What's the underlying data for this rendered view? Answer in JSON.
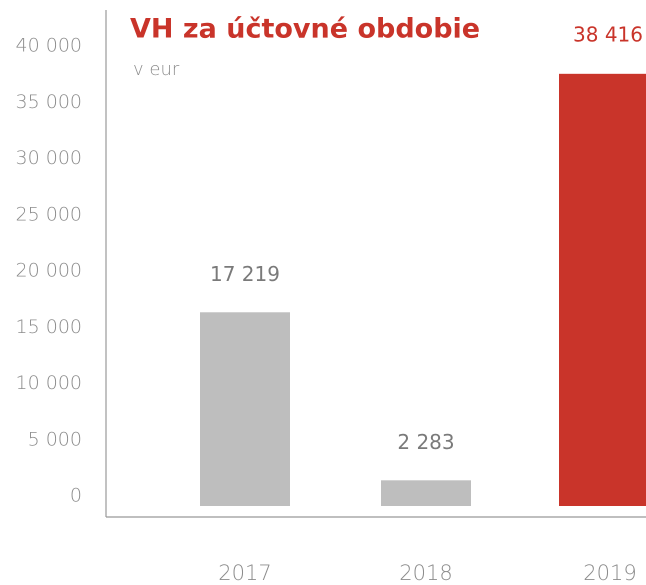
{
  "chart_data": {
    "type": "bar",
    "title": "VH za účtovné obdobie",
    "subtitle": "v eur",
    "categories": [
      "2017",
      "2018",
      "2019"
    ],
    "values": [
      17219,
      2283,
      38416
    ],
    "value_labels": [
      "17 219",
      "2 283",
      "38 416"
    ],
    "colors": [
      "#bebebe",
      "#bebebe",
      "#c9342a"
    ],
    "label_colors": [
      "#7a7a7a",
      "#7a7a7a",
      "#c9342a"
    ],
    "title_color": "#c9342a",
    "ylim": [
      0,
      40000
    ],
    "yticks": [
      {
        "value": 0,
        "label": "0"
      },
      {
        "value": 5000,
        "label": "5 000"
      },
      {
        "value": 10000,
        "label": "10 000"
      },
      {
        "value": 15000,
        "label": "15 000"
      },
      {
        "value": 20000,
        "label": "20 000"
      },
      {
        "value": 25000,
        "label": "25 000"
      },
      {
        "value": 30000,
        "label": "30 000"
      },
      {
        "value": 35000,
        "label": "35 000"
      },
      {
        "value": 40000,
        "label": "40 000"
      }
    ],
    "grid": false
  }
}
